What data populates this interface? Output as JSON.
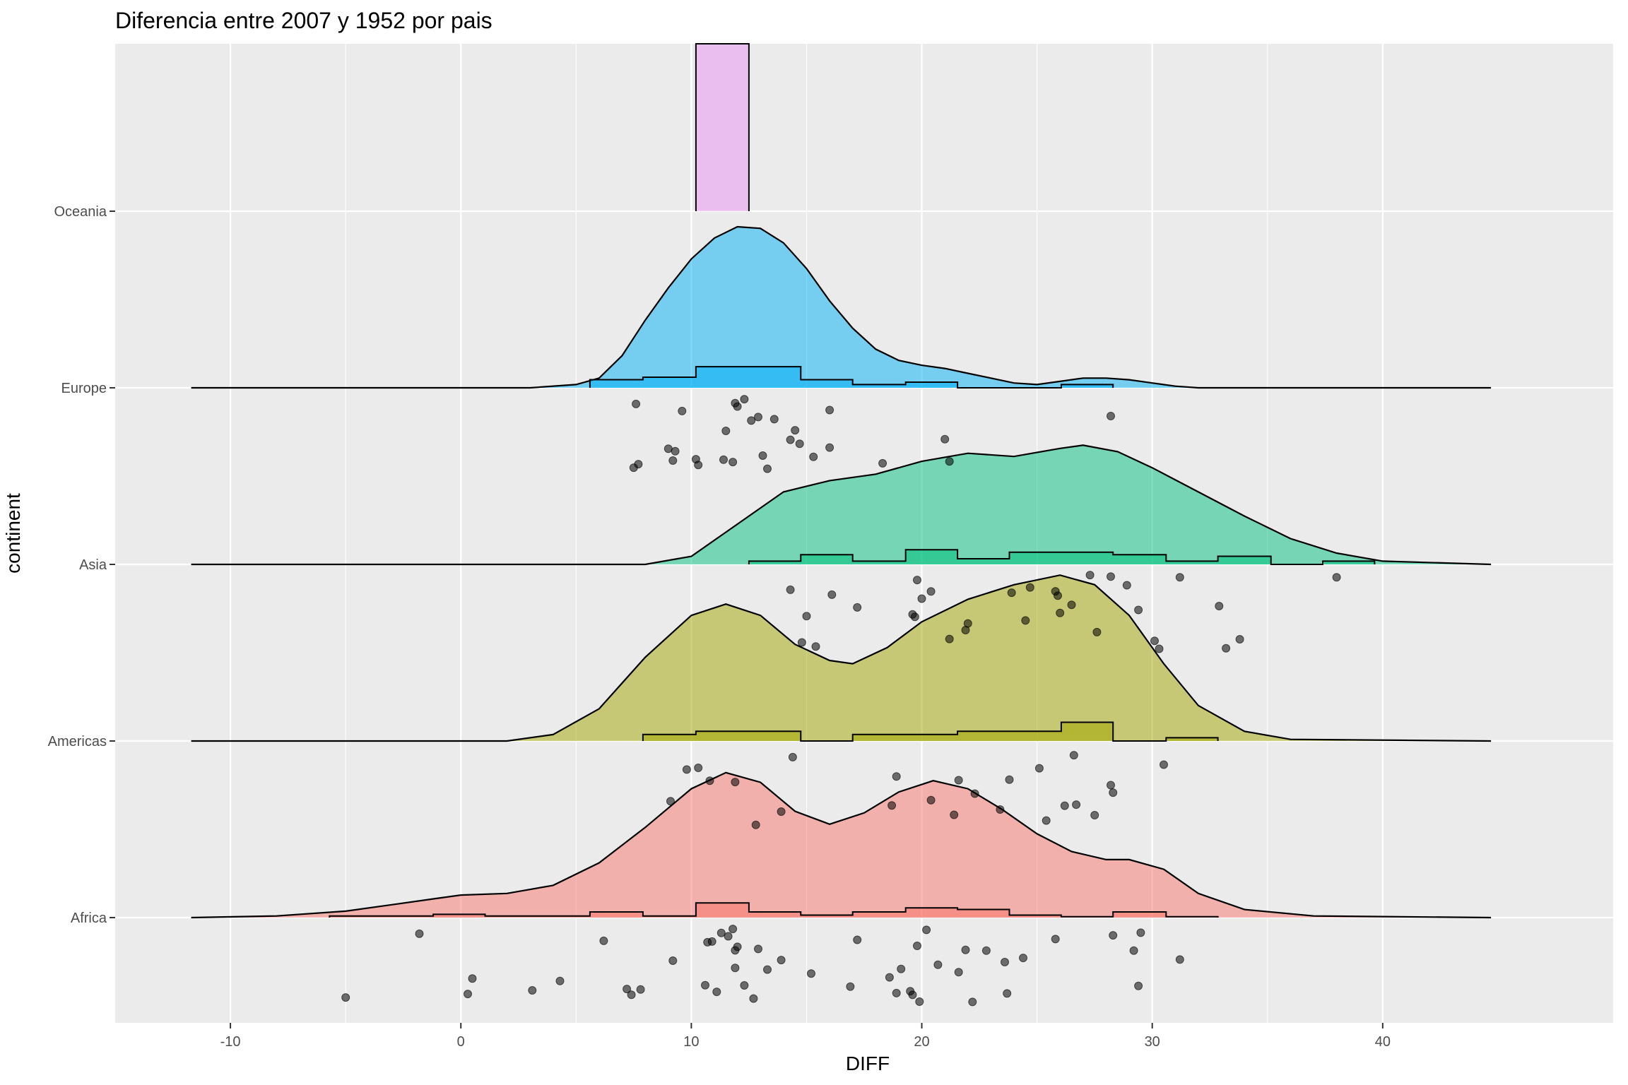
{
  "chart_data": {
    "type": "raincloud",
    "title": "Diferencia entre 2007 y 1952 por pais",
    "xlabel": "DIFF",
    "ylabel": "continent",
    "xlim": [
      -15,
      50
    ],
    "x_ticks": [
      -10,
      0,
      10,
      20,
      30,
      40
    ],
    "categories": [
      "Africa",
      "Americas",
      "Asia",
      "Europe",
      "Oceania"
    ],
    "colors": {
      "Africa": "#F8766D",
      "Americas": "#A3A500",
      "Asia": "#00BF7D",
      "Europe": "#00B0F6",
      "Oceania": "#E76BF3",
      "panel_background": "#EBEBEB"
    },
    "series": [
      {
        "group": "Africa",
        "density": [
          [
            -11.7,
            0
          ],
          [
            -8,
            0.01
          ],
          [
            -5,
            0.04
          ],
          [
            -3,
            0.08
          ],
          [
            -1,
            0.12
          ],
          [
            0,
            0.14
          ],
          [
            2,
            0.15
          ],
          [
            4,
            0.2
          ],
          [
            6,
            0.34
          ],
          [
            8,
            0.56
          ],
          [
            10,
            0.8
          ],
          [
            11.5,
            0.9
          ],
          [
            13,
            0.84
          ],
          [
            14.5,
            0.66
          ],
          [
            16,
            0.58
          ],
          [
            17.5,
            0.65
          ],
          [
            19,
            0.78
          ],
          [
            20.5,
            0.85
          ],
          [
            22,
            0.8
          ],
          [
            23.5,
            0.67
          ],
          [
            25,
            0.52
          ],
          [
            26.5,
            0.41
          ],
          [
            28,
            0.36
          ],
          [
            29,
            0.36
          ],
          [
            30.5,
            0.3
          ],
          [
            32,
            0.15
          ],
          [
            34,
            0.05
          ],
          [
            37,
            0.01
          ],
          [
            44.7,
            0
          ]
        ],
        "histogram": {
          "breaks": [
            -5.7,
            -1.2,
            1.05,
            5.6,
            7.9,
            10.2,
            12.5,
            14.75,
            17,
            19.3,
            21.55,
            23.8,
            26.05,
            28.3,
            30.6,
            32.85
          ],
          "heights": [
            0.02,
            0.04,
            0.02,
            0.07,
            0.02,
            0.18,
            0.07,
            0.03,
            0.07,
            0.12,
            0.1,
            0.03,
            0.01,
            0.07,
            0.01
          ]
        },
        "points": [
          -5,
          -1.8,
          0.3,
          0.5,
          3.1,
          4.3,
          6.2,
          7.2,
          7.4,
          7.8,
          9.2,
          11.1,
          11.3,
          11.6,
          11.8,
          11.9,
          12,
          12.3,
          12.7,
          12.9,
          13.3,
          13.9,
          15.2,
          16.9,
          17.2,
          18.6,
          18.9,
          19.1,
          19.5,
          19.8,
          20.2,
          21.6,
          21.9,
          22.2,
          22.8,
          23.6,
          23.7,
          24.4,
          25.8,
          28.3,
          29.2,
          29.4,
          29.5,
          31.2,
          10.6,
          10.7,
          10.9,
          11.9,
          19.6,
          19.9,
          20.7
        ]
      },
      {
        "group": "Americas",
        "density": [
          [
            -11.7,
            0
          ],
          [
            2,
            0
          ],
          [
            4,
            0.04
          ],
          [
            6,
            0.2
          ],
          [
            8,
            0.52
          ],
          [
            10,
            0.78
          ],
          [
            11.5,
            0.85
          ],
          [
            13,
            0.78
          ],
          [
            14.5,
            0.6
          ],
          [
            16,
            0.5
          ],
          [
            17,
            0.48
          ],
          [
            18.5,
            0.58
          ],
          [
            20,
            0.74
          ],
          [
            22,
            0.88
          ],
          [
            24,
            0.97
          ],
          [
            26,
            1.03
          ],
          [
            27.5,
            0.97
          ],
          [
            29,
            0.78
          ],
          [
            30.5,
            0.48
          ],
          [
            32,
            0.22
          ],
          [
            34,
            0.06
          ],
          [
            36,
            0.01
          ],
          [
            44.7,
            0
          ]
        ],
        "histogram": {
          "breaks": [
            7.9,
            10.2,
            12.5,
            14.75,
            17,
            19.3,
            21.55,
            23.8,
            26.05,
            28.3,
            30.6,
            32.85
          ],
          "heights": [
            0.08,
            0.12,
            0.12,
            0,
            0.08,
            0.08,
            0.12,
            0.12,
            0.23,
            0,
            0.04
          ]
        },
        "points": [
          9.1,
          9.8,
          10.3,
          10.8,
          11.9,
          12.8,
          13.9,
          14.4,
          18.7,
          18.9,
          20.4,
          21.4,
          21.6,
          22.3,
          23.4,
          23.8,
          25.1,
          25.4,
          26.2,
          26.6,
          26.7,
          27.5,
          28.2,
          28.3,
          30.5
        ]
      },
      {
        "group": "Asia",
        "density": [
          [
            -11.7,
            0
          ],
          [
            8,
            0
          ],
          [
            10,
            0.05
          ],
          [
            12,
            0.25
          ],
          [
            14,
            0.45
          ],
          [
            16,
            0.52
          ],
          [
            18,
            0.56
          ],
          [
            20,
            0.64
          ],
          [
            22,
            0.69
          ],
          [
            24,
            0.67
          ],
          [
            26,
            0.72
          ],
          [
            27,
            0.74
          ],
          [
            28.5,
            0.7
          ],
          [
            30,
            0.6
          ],
          [
            32,
            0.45
          ],
          [
            34,
            0.3
          ],
          [
            36,
            0.16
          ],
          [
            38,
            0.07
          ],
          [
            40,
            0.02
          ],
          [
            44.7,
            0
          ]
        ],
        "histogram": {
          "breaks": [
            12.5,
            14.75,
            17,
            19.3,
            21.55,
            23.8,
            26.05,
            28.3,
            30.6,
            32.85,
            35.15,
            37.4,
            39.65
          ],
          "heights": [
            0.04,
            0.12,
            0.04,
            0.18,
            0.07,
            0.15,
            0.15,
            0.12,
            0.04,
            0.1,
            0,
            0.04
          ]
        },
        "points": [
          14.3,
          14.8,
          15.0,
          15.4,
          16.1,
          17.2,
          19.6,
          19.7,
          19.8,
          20.0,
          20.4,
          21.2,
          21.9,
          22.0,
          23.9,
          25.8,
          25.9,
          24.5,
          24.7,
          26.0,
          26.5,
          27.3,
          27.6,
          28.2,
          28.9,
          29.4,
          30.1,
          30.3,
          31.2,
          32.9,
          33.2,
          33.8,
          38.0
        ]
      },
      {
        "group": "Europe",
        "density": [
          [
            -11.7,
            0
          ],
          [
            3,
            0
          ],
          [
            5,
            0.02
          ],
          [
            6,
            0.06
          ],
          [
            7,
            0.2
          ],
          [
            8,
            0.42
          ],
          [
            9,
            0.62
          ],
          [
            10,
            0.8
          ],
          [
            11,
            0.93
          ],
          [
            12,
            1.0
          ],
          [
            13,
            0.99
          ],
          [
            14,
            0.9
          ],
          [
            15,
            0.74
          ],
          [
            16,
            0.54
          ],
          [
            17,
            0.37
          ],
          [
            18,
            0.24
          ],
          [
            19,
            0.17
          ],
          [
            20,
            0.14
          ],
          [
            21,
            0.12
          ],
          [
            22,
            0.09
          ],
          [
            23,
            0.06
          ],
          [
            24,
            0.03
          ],
          [
            25,
            0.02
          ],
          [
            26,
            0.04
          ],
          [
            27,
            0.06
          ],
          [
            28,
            0.06
          ],
          [
            29,
            0.05
          ],
          [
            30,
            0.03
          ],
          [
            31,
            0.01
          ],
          [
            32,
            0
          ],
          [
            44.7,
            0
          ]
        ],
        "histogram": {
          "breaks": [
            5.6,
            7.9,
            10.2,
            12.5,
            14.75,
            17,
            19.3,
            21.55,
            23.8,
            26.05,
            28.3
          ],
          "heights": [
            0.1,
            0.13,
            0.26,
            0.26,
            0.1,
            0.04,
            0.07,
            0,
            0,
            0.04
          ]
        },
        "points": [
          7.5,
          7.6,
          7.7,
          9.0,
          9.2,
          9.3,
          9.6,
          10.2,
          10.3,
          11.4,
          11.5,
          11.8,
          11.9,
          12.0,
          12.3,
          12.6,
          12.9,
          13.1,
          13.3,
          13.6,
          14.3,
          14.5,
          14.7,
          15.3,
          16.0,
          16.0,
          18.3,
          21.0,
          21.2,
          28.2
        ]
      },
      {
        "group": "Oceania",
        "density": [],
        "histogram": {
          "breaks": [
            10.2,
            12.5
          ],
          "heights": [
            1.0
          ]
        },
        "points": []
      }
    ]
  }
}
